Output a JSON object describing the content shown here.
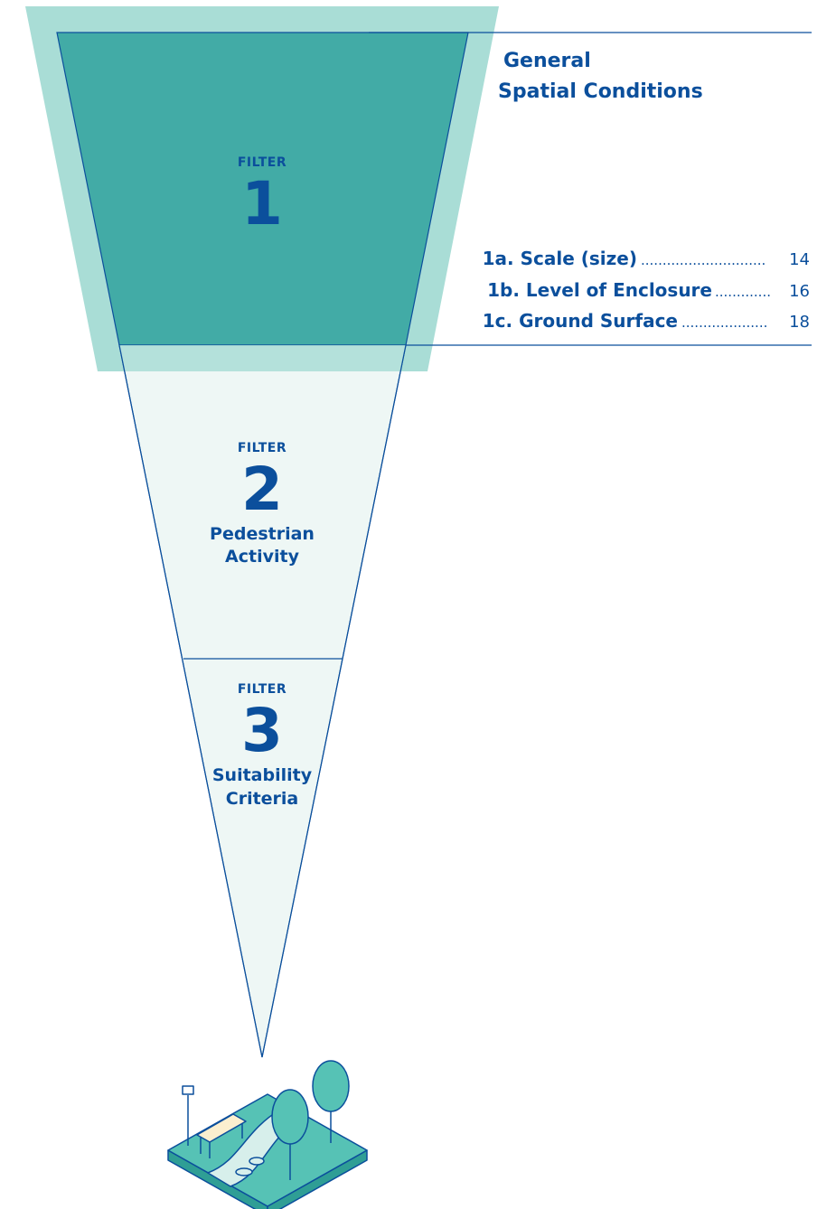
{
  "colors": {
    "outer_band": "#a9ddd6",
    "filter1_fill": "#42aba6",
    "cone_fill": "#eef7f5",
    "line": "#0b4f9c",
    "text": "#0b4f9c",
    "park_green": "#56c2b5",
    "park_dark": "#2f9e95"
  },
  "filters": [
    {
      "label": "FILTER",
      "number": "1",
      "name": []
    },
    {
      "label": "FILTER",
      "number": "2",
      "name": [
        "Pedestrian",
        "Activity"
      ]
    },
    {
      "label": "FILTER",
      "number": "3",
      "name": [
        "Suitability",
        "Criteria"
      ]
    }
  ],
  "filter1_panel": {
    "heading": [
      "General",
      "Spatial Conditions"
    ],
    "items": [
      {
        "title": "1a. Scale (size)",
        "page": "14"
      },
      {
        "title": "1b. Level of Enclosure",
        "page": "16"
      },
      {
        "title": "1c. Ground Surface",
        "page": "18"
      }
    ]
  },
  "illustration": {
    "icon": "park-plaza-icon"
  }
}
